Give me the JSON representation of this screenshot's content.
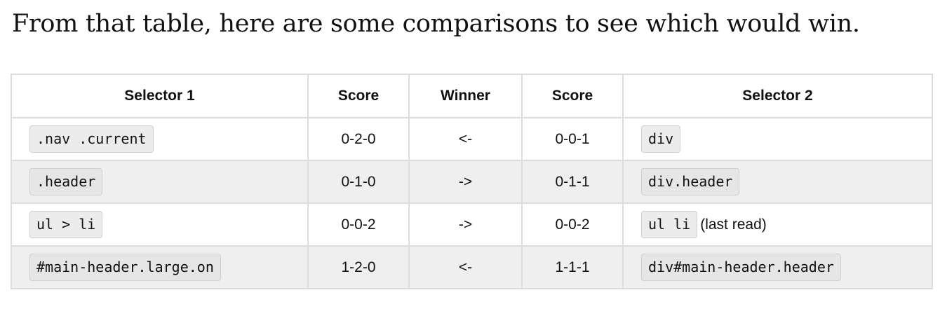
{
  "intro_text": "From that table, here are some comparisons to see which would win.",
  "table": {
    "headers": {
      "selector1": "Selector 1",
      "score1": "Score",
      "winner": "Winner",
      "score2": "Score",
      "selector2": "Selector 2"
    },
    "rows": [
      {
        "selector1": ".nav .current",
        "score1": "0-2-0",
        "winner": "<-",
        "score2": "0-0-1",
        "selector2": "div",
        "note": ""
      },
      {
        "selector1": ".header",
        "score1": "0-1-0",
        "winner": "->",
        "score2": "0-1-1",
        "selector2": "div.header",
        "note": ""
      },
      {
        "selector1": "ul > li",
        "score1": "0-0-2",
        "winner": "->",
        "score2": "0-0-2",
        "selector2": "ul li",
        "note": "(last read)"
      },
      {
        "selector1": "#main-header.large.on",
        "score1": "1-2-0",
        "winner": "<-",
        "score2": "1-1-1",
        "selector2": "div#main-header.header",
        "note": ""
      }
    ]
  }
}
